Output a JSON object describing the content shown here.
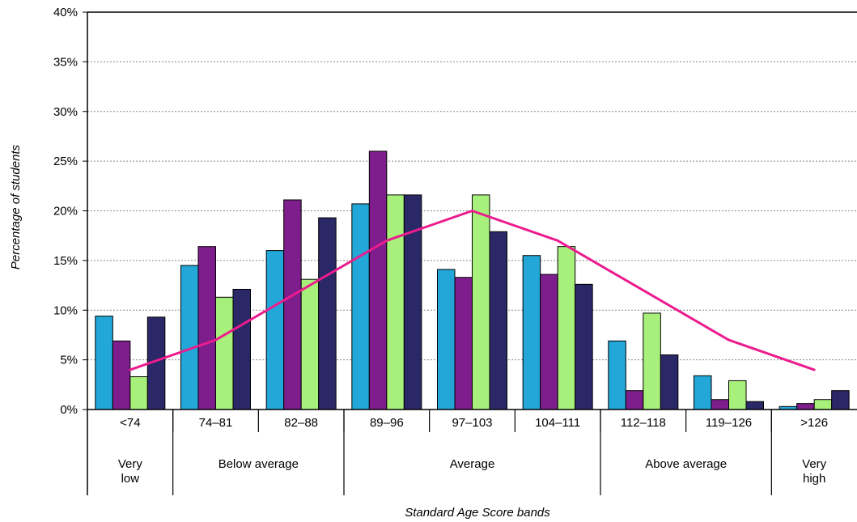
{
  "chart_data": {
    "type": "bar",
    "title": "",
    "xlabel": "Standard Age Score bands",
    "ylabel": "Percentage of students",
    "ylim": [
      0,
      40
    ],
    "yticks": [
      "0%",
      "5%",
      "10%",
      "15%",
      "20%",
      "25%",
      "30%",
      "35%",
      "40%"
    ],
    "grid": "horizontal dotted",
    "legend": "none",
    "categories": [
      "<74",
      "74–81",
      "82–88",
      "89–96",
      "97–103",
      "104–111",
      "112–118",
      "119–126",
      ">126"
    ],
    "groups": [
      {
        "label_lines": [
          "Very",
          "low"
        ],
        "span": [
          0,
          0
        ]
      },
      {
        "label_lines": [
          "Below average"
        ],
        "span": [
          1,
          2
        ]
      },
      {
        "label_lines": [
          "Average"
        ],
        "span": [
          3,
          5
        ]
      },
      {
        "label_lines": [
          "Above average"
        ],
        "span": [
          6,
          7
        ]
      },
      {
        "label_lines": [
          "Very",
          "high"
        ],
        "span": [
          8,
          8
        ]
      }
    ],
    "series": [
      {
        "color": "#22a7d8",
        "values": [
          9.4,
          14.5,
          16.0,
          20.7,
          14.1,
          15.5,
          6.9,
          3.4,
          0.3
        ]
      },
      {
        "color": "#7e1e8c",
        "values": [
          6.9,
          16.4,
          21.1,
          26.0,
          13.3,
          13.6,
          1.9,
          1.0,
          0.6
        ]
      },
      {
        "color": "#a8f07c",
        "values": [
          3.3,
          11.3,
          13.1,
          21.6,
          21.6,
          16.4,
          9.7,
          2.9,
          1.0
        ]
      },
      {
        "color": "#2a2866",
        "values": [
          9.3,
          12.1,
          19.3,
          21.6,
          17.9,
          12.6,
          5.5,
          0.8,
          1.9
        ]
      }
    ],
    "line": {
      "color": "#ec1c8e",
      "values": [
        4,
        7,
        12,
        17,
        20,
        17,
        12,
        7,
        4
      ]
    }
  }
}
